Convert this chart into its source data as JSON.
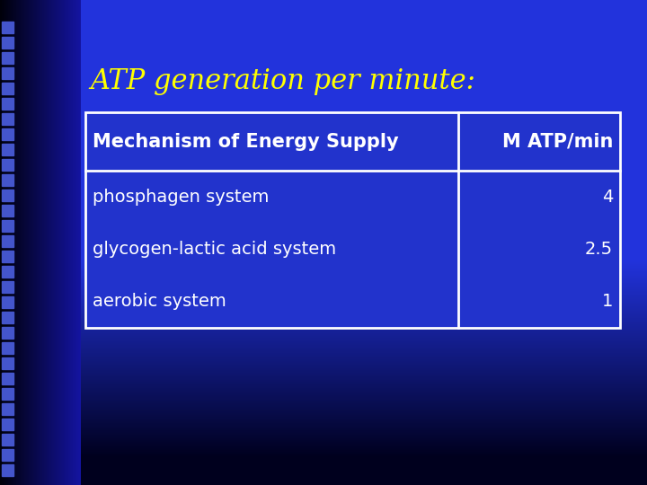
{
  "title": "ATP generation per minute:",
  "title_color": "#FFFF00",
  "title_fontsize": 22,
  "background_color": "#2233dd",
  "table_header": [
    "Mechanism of Energy Supply",
    "M ATP/min"
  ],
  "table_rows": [
    [
      "phosphagen system",
      "4"
    ],
    [
      "glycogen-lactic acid system",
      "2.5"
    ],
    [
      "aerobic system",
      "1"
    ]
  ],
  "table_text_color": "#ffffff",
  "table_header_fontsize": 15,
  "table_body_fontsize": 14,
  "table_border_color": "#ffffff",
  "table_bg_color": "#2233dd"
}
